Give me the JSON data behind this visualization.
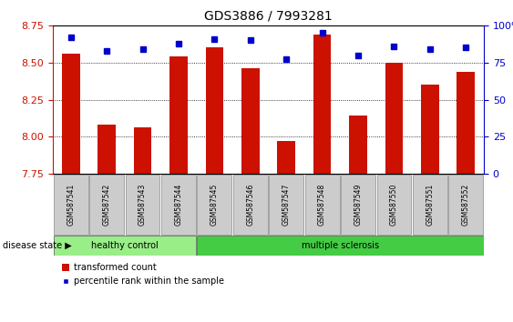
{
  "title": "GDS3886 / 7993281",
  "samples": [
    "GSM587541",
    "GSM587542",
    "GSM587543",
    "GSM587544",
    "GSM587545",
    "GSM587546",
    "GSM587547",
    "GSM587548",
    "GSM587549",
    "GSM587550",
    "GSM587551",
    "GSM587552"
  ],
  "bar_values": [
    8.56,
    8.08,
    8.06,
    8.54,
    8.6,
    8.46,
    7.97,
    8.69,
    8.14,
    8.5,
    8.35,
    8.44
  ],
  "dot_values": [
    92,
    83,
    84,
    88,
    91,
    90,
    77,
    95,
    80,
    86,
    84,
    85
  ],
  "ylim_left": [
    7.75,
    8.75
  ],
  "ylim_right": [
    0,
    100
  ],
  "yticks_left": [
    7.75,
    8.0,
    8.25,
    8.5,
    8.75
  ],
  "yticks_right": [
    0,
    25,
    50,
    75,
    100
  ],
  "bar_color": "#cc1100",
  "dot_color": "#0000cc",
  "healthy_count": 4,
  "healthy_label": "healthy control",
  "ms_label": "multiple sclerosis",
  "healthy_color": "#99ee88",
  "ms_color": "#44cc44",
  "disease_label": "disease state",
  "legend_bar": "transformed count",
  "legend_dot": "percentile rank within the sample",
  "bar_width": 0.5,
  "tick_label_bg": "#cccccc",
  "title_fontsize": 10
}
